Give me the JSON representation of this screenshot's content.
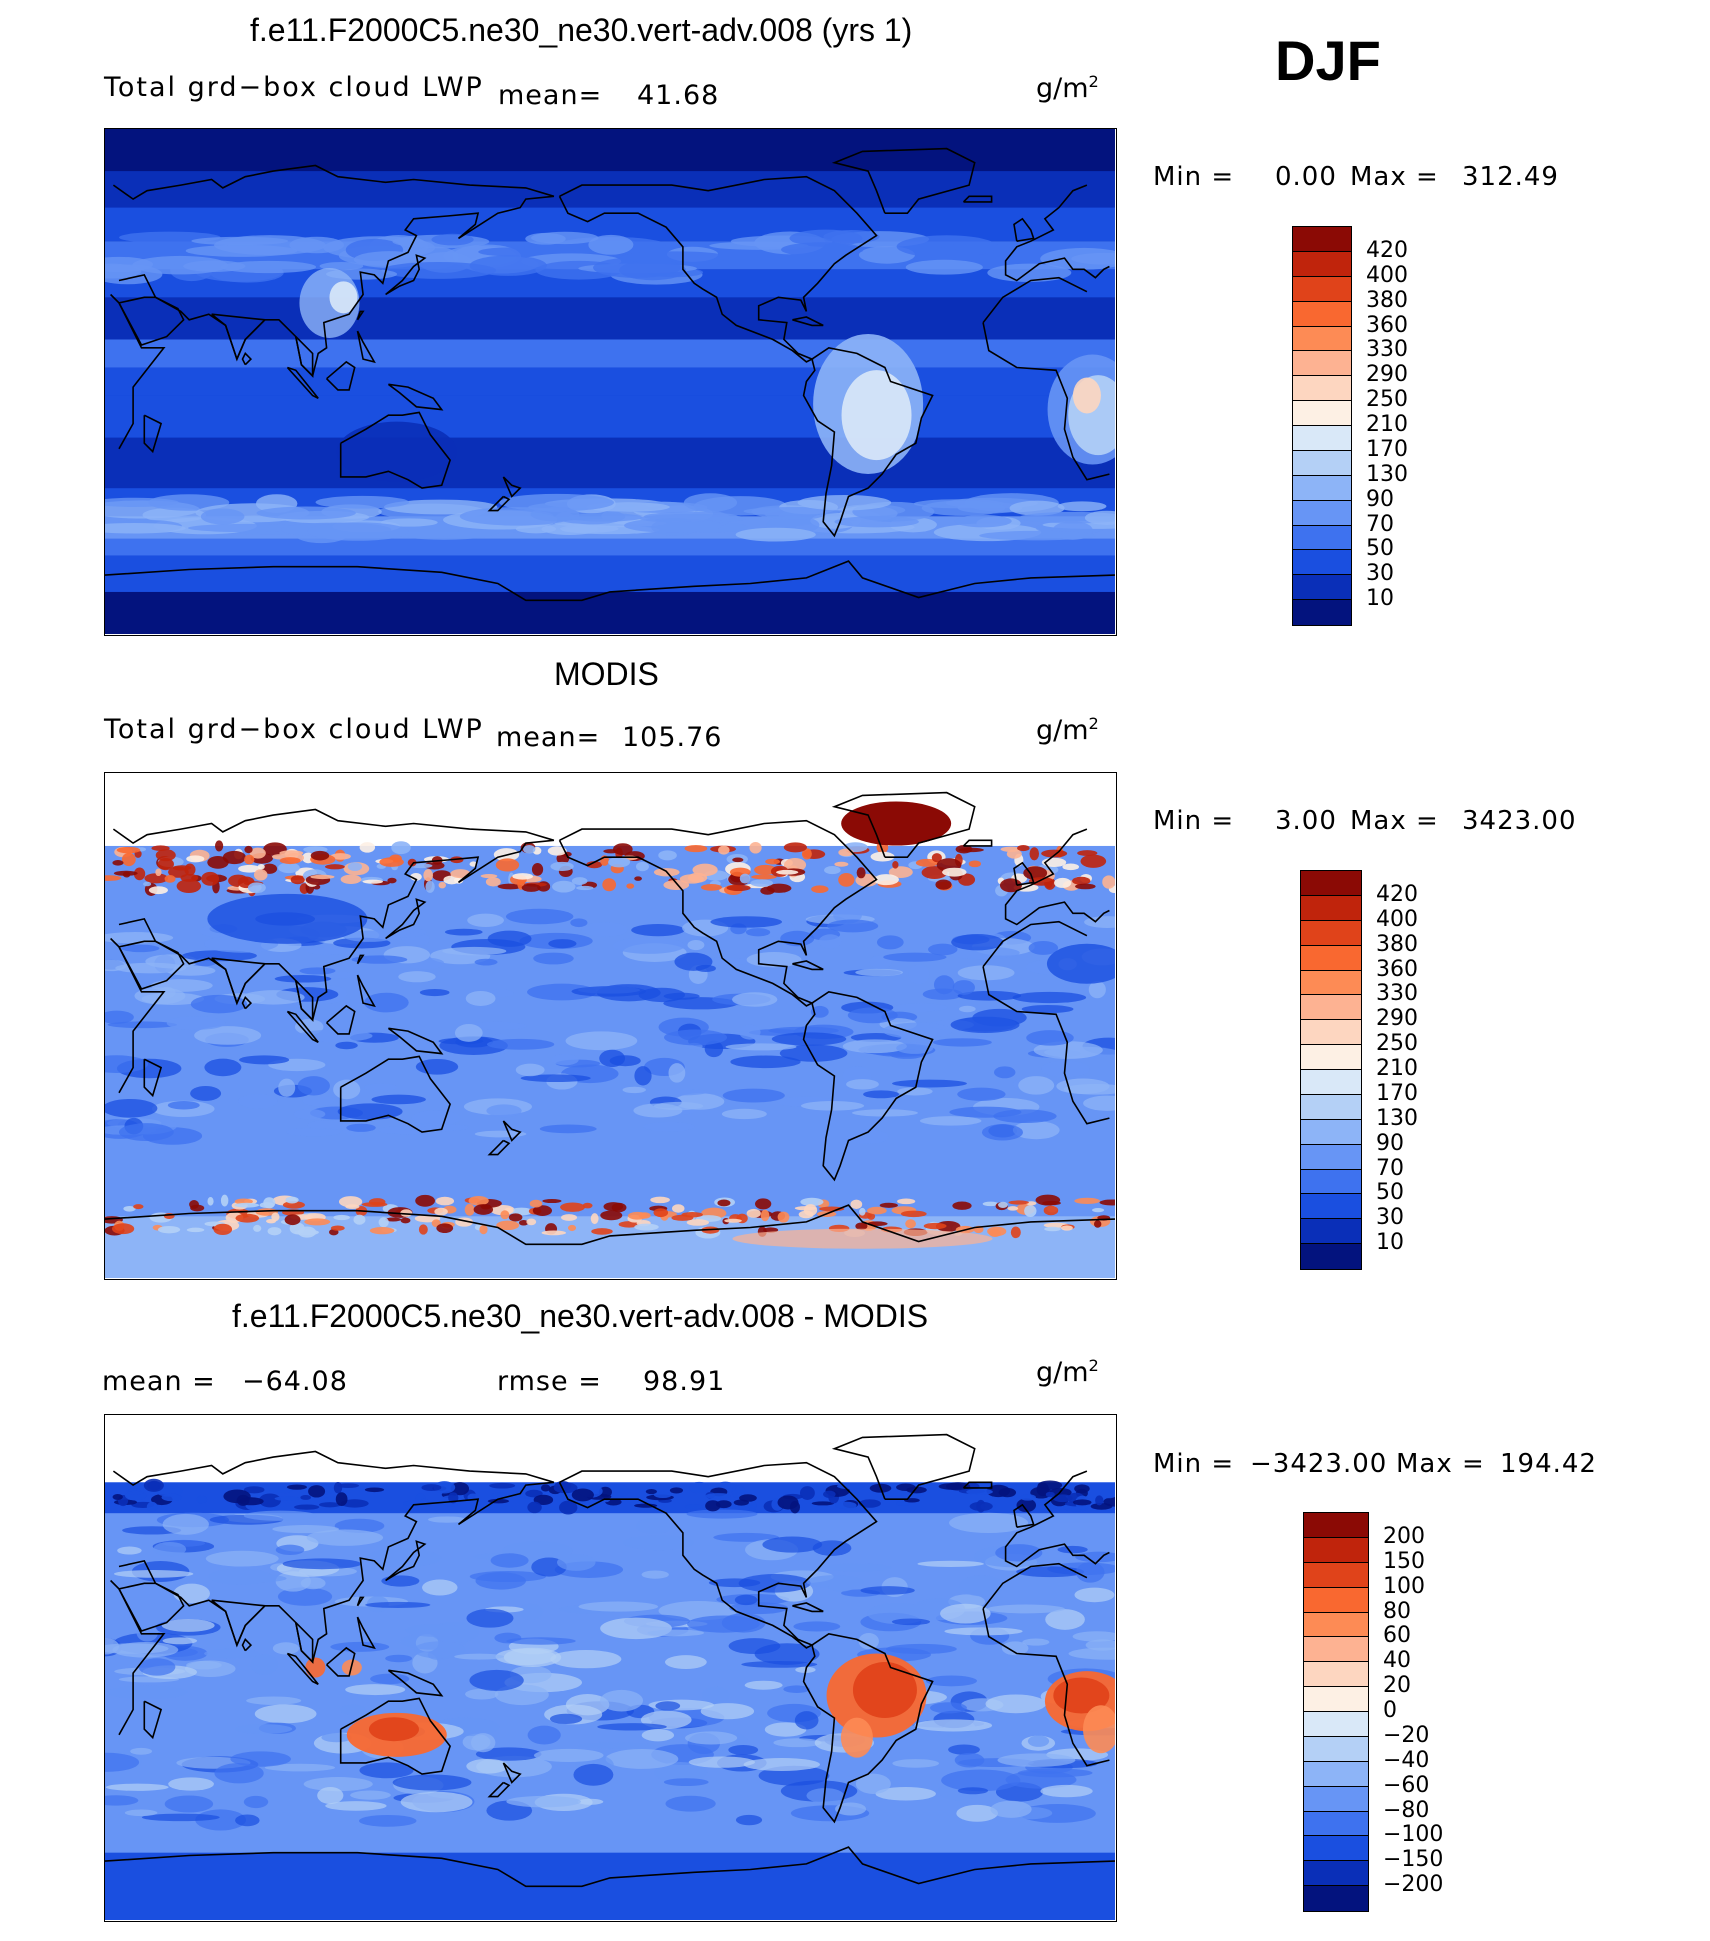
{
  "season": "DJF",
  "panels": [
    {
      "title": "f.e11.F2000C5.ne30_ne30.vert-adv.008 (yrs 1)",
      "left_label": "Total grd−box cloud LWP",
      "mean_label": "mean=",
      "mean_value": "41.68",
      "units_base": "g/m",
      "units_exp": "2",
      "min_label": "Min =",
      "min_value": "0.00",
      "max_label": "Max =",
      "max_value": "312.49",
      "colorbar": {
        "levels": [
          "420",
          "400",
          "380",
          "360",
          "330",
          "290",
          "250",
          "210",
          "170",
          "130",
          "90",
          "70",
          "50",
          "30",
          "10"
        ],
        "colors": [
          "#8b0a05",
          "#c0240c",
          "#e0431a",
          "#f96830",
          "#fd8b55",
          "#fdb292",
          "#fdd6c0",
          "#fdf0e4",
          "#d9e8f8",
          "#b4d0f6",
          "#8db4f7",
          "#6795f5",
          "#3e72ef",
          "#1a4fe0",
          "#0a2fb8",
          "#03137e"
        ]
      },
      "map_style": "model"
    },
    {
      "title": "MODIS",
      "left_label": "Total grd−box cloud LWP",
      "mean_label": "mean=",
      "mean_value": "105.76",
      "units_base": "g/m",
      "units_exp": "2",
      "min_label": "Min =",
      "min_value": "3.00",
      "max_label": "Max =",
      "max_value": "3423.00",
      "colorbar": {
        "levels": [
          "420",
          "400",
          "380",
          "360",
          "330",
          "290",
          "250",
          "210",
          "170",
          "130",
          "90",
          "70",
          "50",
          "30",
          "10"
        ],
        "colors": [
          "#8b0a05",
          "#c0240c",
          "#e0431a",
          "#f96830",
          "#fd8b55",
          "#fdb292",
          "#fdd6c0",
          "#fdf0e4",
          "#d9e8f8",
          "#b4d0f6",
          "#8db4f7",
          "#6795f5",
          "#3e72ef",
          "#1a4fe0",
          "#0a2fb8",
          "#03137e"
        ]
      },
      "map_style": "obs"
    },
    {
      "title": "f.e11.F2000C5.ne30_ne30.vert-adv.008 - MODIS",
      "mean_label": "mean =",
      "mean_value": "−64.08",
      "rmse_label": "rmse =",
      "rmse_value": "98.91",
      "units_base": "g/m",
      "units_exp": "2",
      "min_label": "Min =",
      "min_value": "−3423.00",
      "max_label": "Max =",
      "max_value": "194.42",
      "colorbar": {
        "levels": [
          "200",
          "150",
          "100",
          "80",
          "60",
          "40",
          "20",
          "0",
          "−20",
          "−40",
          "−60",
          "−80",
          "−100",
          "−150",
          "−200"
        ],
        "colors": [
          "#8b0a05",
          "#c0240c",
          "#e0431a",
          "#f96830",
          "#fd8b55",
          "#fdb292",
          "#fdd6c0",
          "#fdf0e4",
          "#d9e8f8",
          "#b4d0f6",
          "#8db4f7",
          "#6795f5",
          "#3e72ef",
          "#1a4fe0",
          "#0a2fb8",
          "#03137e"
        ]
      },
      "map_style": "diff"
    }
  ]
}
